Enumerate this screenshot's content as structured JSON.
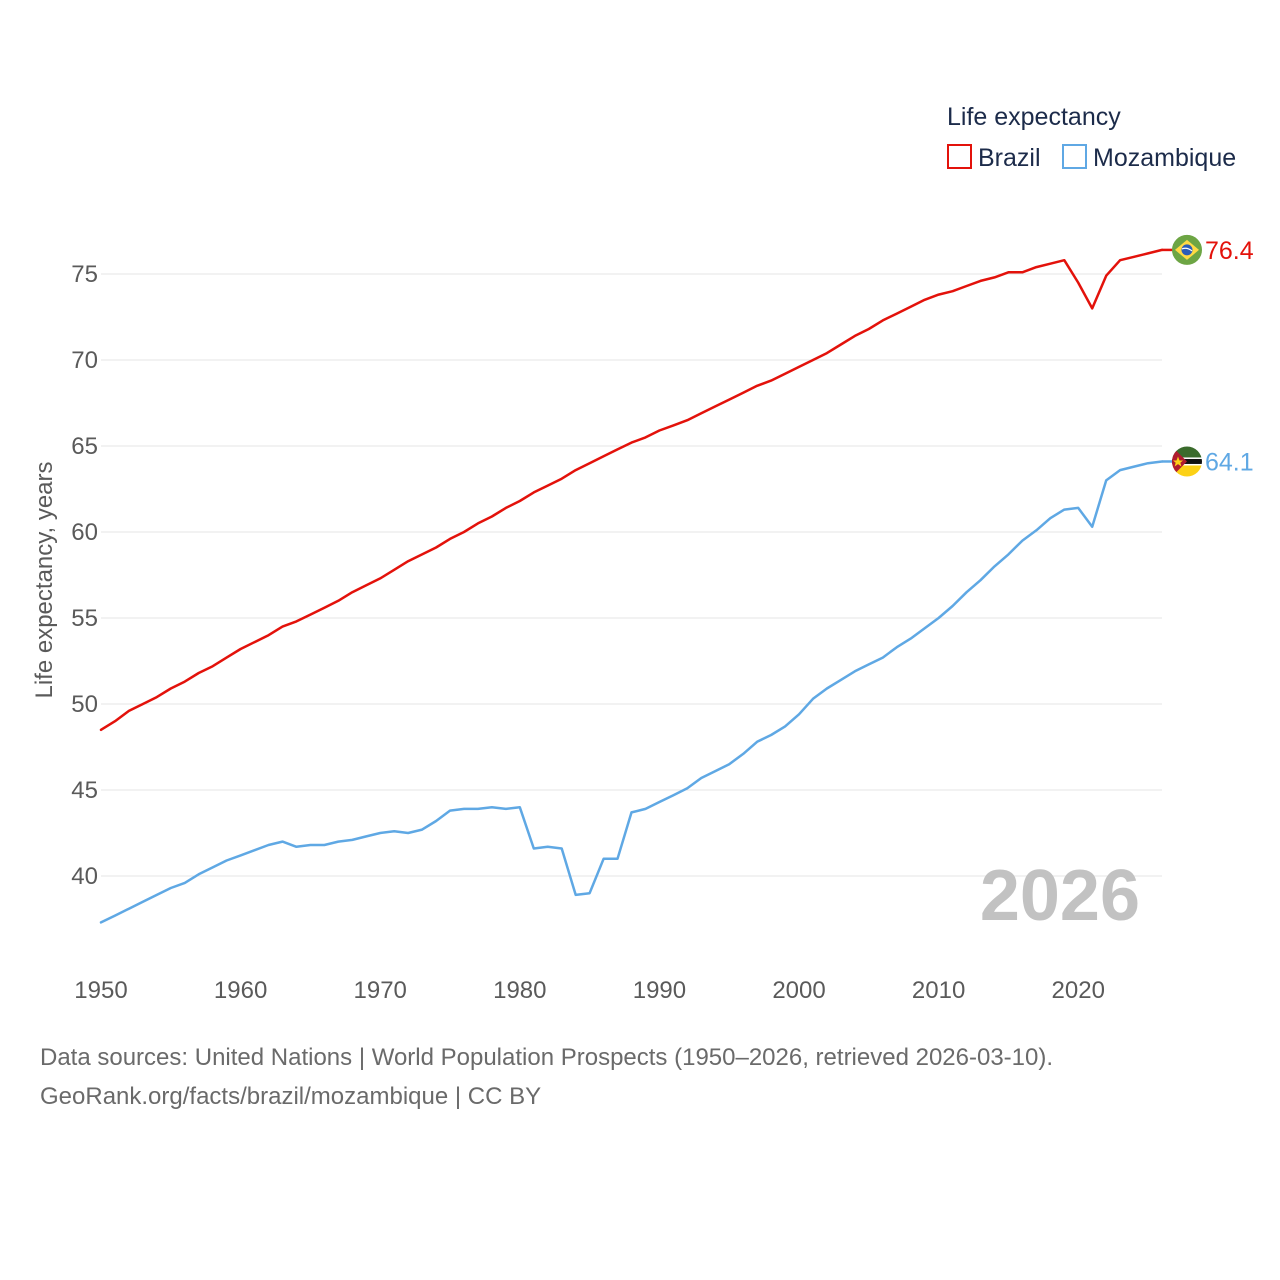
{
  "chart_data": {
    "type": "line",
    "legend_title": "Life expectancy",
    "legend_position": "top-right",
    "ylabel": "Life expectancy, years",
    "xlabel": "",
    "xlim": [
      1950,
      2026
    ],
    "ylim": [
      35,
      80
    ],
    "x_ticks": [
      1950,
      1960,
      1970,
      1980,
      1990,
      2000,
      2010,
      2020
    ],
    "y_ticks": [
      40,
      45,
      50,
      55,
      60,
      65,
      70,
      75
    ],
    "grid": true,
    "current_year": "2026",
    "x": [
      1950,
      1951,
      1952,
      1953,
      1954,
      1955,
      1956,
      1957,
      1958,
      1959,
      1960,
      1961,
      1962,
      1963,
      1964,
      1965,
      1966,
      1967,
      1968,
      1969,
      1970,
      1971,
      1972,
      1973,
      1974,
      1975,
      1976,
      1977,
      1978,
      1979,
      1980,
      1981,
      1982,
      1983,
      1984,
      1985,
      1986,
      1987,
      1988,
      1989,
      1990,
      1991,
      1992,
      1993,
      1994,
      1995,
      1996,
      1997,
      1998,
      1999,
      2000,
      2001,
      2002,
      2003,
      2004,
      2005,
      2006,
      2007,
      2008,
      2009,
      2010,
      2011,
      2012,
      2013,
      2014,
      2015,
      2016,
      2017,
      2018,
      2019,
      2020,
      2021,
      2022,
      2023,
      2024,
      2025,
      2026
    ],
    "series": [
      {
        "name": "Brazil",
        "color": "#e3120b",
        "end_label": "76.4",
        "flag_icon": "brazil-flag-icon",
        "values": [
          48.5,
          49.0,
          49.6,
          50.0,
          50.4,
          50.9,
          51.3,
          51.8,
          52.2,
          52.7,
          53.2,
          53.6,
          54.0,
          54.5,
          54.8,
          55.2,
          55.6,
          56.0,
          56.5,
          56.9,
          57.3,
          57.8,
          58.3,
          58.7,
          59.1,
          59.6,
          60.0,
          60.5,
          60.9,
          61.4,
          61.8,
          62.3,
          62.7,
          63.1,
          63.6,
          64.0,
          64.4,
          64.8,
          65.2,
          65.5,
          65.9,
          66.2,
          66.5,
          66.9,
          67.3,
          67.7,
          68.1,
          68.5,
          68.8,
          69.2,
          69.6,
          70.0,
          70.4,
          70.9,
          71.4,
          71.8,
          72.3,
          72.7,
          73.1,
          73.5,
          73.8,
          74.0,
          74.3,
          74.6,
          74.8,
          75.1,
          75.1,
          75.4,
          75.6,
          75.8,
          74.5,
          73.0,
          74.9,
          75.8,
          76.0,
          76.2,
          76.4
        ]
      },
      {
        "name": "Mozambique",
        "color": "#5fa8e4",
        "end_label": "64.1",
        "flag_icon": "mozambique-flag-icon",
        "values": [
          37.3,
          37.7,
          38.1,
          38.5,
          38.9,
          39.3,
          39.6,
          40.1,
          40.5,
          40.9,
          41.2,
          41.5,
          41.8,
          42.0,
          41.7,
          41.8,
          41.8,
          42.0,
          42.1,
          42.3,
          42.5,
          42.6,
          42.5,
          42.7,
          43.2,
          43.8,
          43.9,
          43.9,
          44.0,
          43.9,
          44.0,
          41.6,
          41.7,
          41.6,
          38.9,
          39.0,
          41.0,
          41.0,
          43.7,
          43.9,
          44.3,
          44.7,
          45.1,
          45.7,
          46.1,
          46.5,
          47.1,
          47.8,
          48.2,
          48.7,
          49.4,
          50.3,
          50.9,
          51.4,
          51.9,
          52.3,
          52.7,
          53.3,
          53.8,
          54.4,
          55.0,
          55.7,
          56.5,
          57.2,
          58.0,
          58.7,
          59.5,
          60.1,
          60.8,
          61.3,
          61.4,
          60.3,
          63.0,
          63.6,
          63.8,
          64.0,
          64.1
        ]
      }
    ]
  },
  "footer": {
    "source_line": "Data sources: United Nations | World Population Prospects (1950–2026, retrieved 2026-03-10).",
    "url_line": "GeoRank.org/facts/brazil/mozambique | CC BY"
  }
}
